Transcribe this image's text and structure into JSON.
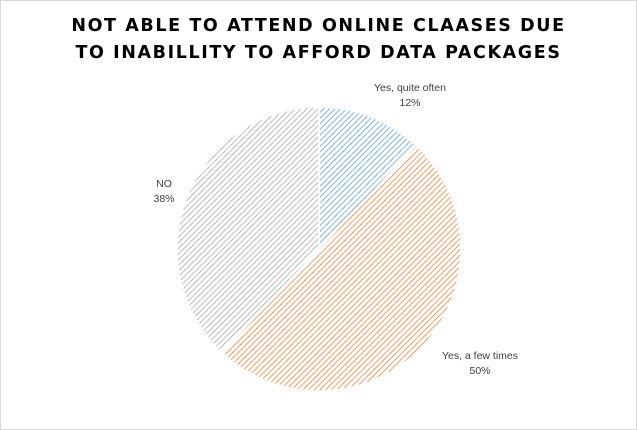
{
  "chart_data": {
    "type": "pie",
    "title_lines": [
      "NOT ABLE TO ATTEND ONLINE CLAASES DUE",
      "TO INABILLITY TO AFFORD DATA PACKAGES"
    ],
    "slices": [
      {
        "label": "Yes, quite often",
        "value": 12,
        "value_label": "12%",
        "color": "#5b9bd5"
      },
      {
        "label": "Yes, a few times",
        "value": 50,
        "value_label": "50%",
        "color": "#ed7d31"
      },
      {
        "label": "NO",
        "value": 38,
        "value_label": "38%",
        "color": "#a5a5a5"
      }
    ],
    "legend": "none",
    "fill_style": "diagonal-hatch"
  }
}
